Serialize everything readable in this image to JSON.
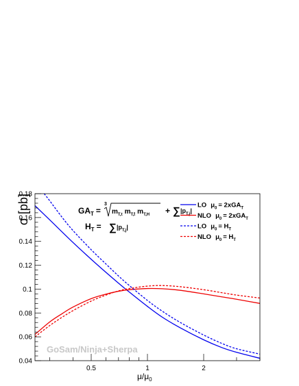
{
  "chart_data": {
    "type": "line",
    "xlabel": "μ/μ",
    "xlabel_sub": "0",
    "ylabel": "σ [pb]",
    "x_scale": "log",
    "xlim": [
      0.25,
      4.0
    ],
    "ylim": [
      0.04,
      0.18
    ],
    "y_ticks": [
      "0.04",
      "0.06",
      "0.08",
      "0.1",
      "0.12",
      "0.14",
      "0.16",
      "0.18"
    ],
    "x_ticks": [
      "0.5",
      "1",
      "2"
    ],
    "watermark": "GoSam/Ninja+Sherpa",
    "formulas": {
      "ga": {
        "lhs": "GA",
        "lhs_sub": "T",
        "eq": "=",
        "root_index": "3",
        "m1": "m",
        "m1_sub": "T,t",
        "m2": "m",
        "m2_sub": "T,t̄",
        "m3": "m",
        "m3_sub": "T,H",
        "plus": "+",
        "sum": "∑",
        "p": "|p",
        "p_sub": "T,j",
        "p_close": "|"
      },
      "ht": {
        "lhs": "H",
        "lhs_sub": "T",
        "eq": "=",
        "sum": "∑",
        "p": "|p",
        "p_sub": "T,j",
        "p_close": "|"
      }
    },
    "legend_position": "top-right",
    "series": [
      {
        "order": "LO",
        "mu": "μ",
        "mu_sub": "0",
        "scale": "= 2xGA",
        "scale_sub": "T",
        "color": "#0000ee",
        "dash": "solid",
        "x": [
          0.25,
          0.3,
          0.4,
          0.5,
          0.6,
          0.7,
          0.8,
          1.0,
          1.2,
          1.5,
          2.0,
          2.5,
          3.0,
          4.0
        ],
        "y": [
          0.17,
          0.158,
          0.139,
          0.125,
          0.114,
          0.105,
          0.0975,
          0.0855,
          0.0765,
          0.0675,
          0.0575,
          0.051,
          0.047,
          0.042
        ]
      },
      {
        "order": "NLO",
        "mu": "μ",
        "mu_sub": "0",
        "scale": "= 2xGA",
        "scale_sub": "T",
        "color": "#ee0000",
        "dash": "solid",
        "x": [
          0.25,
          0.3,
          0.35,
          0.4,
          0.5,
          0.6,
          0.7,
          0.8,
          1.0,
          1.2,
          1.5,
          2.0,
          2.5,
          3.0,
          4.0
        ],
        "y": [
          0.062,
          0.0725,
          0.0795,
          0.085,
          0.092,
          0.0958,
          0.0982,
          0.0995,
          0.1005,
          0.1003,
          0.099,
          0.096,
          0.0935,
          0.0915,
          0.088
        ]
      },
      {
        "order": "LO",
        "mu": "μ",
        "mu_sub": "0",
        "scale": "= H",
        "scale_sub": "T",
        "color": "#0000ee",
        "dash": "dotted",
        "x": [
          0.28,
          0.3,
          0.35,
          0.4,
          0.5,
          0.6,
          0.7,
          0.8,
          1.0,
          1.2,
          1.5,
          2.0,
          2.5,
          3.0,
          4.0
        ],
        "y": [
          0.18,
          0.174,
          0.16,
          0.149,
          0.133,
          0.121,
          0.111,
          0.103,
          0.0905,
          0.0815,
          0.072,
          0.0615,
          0.0545,
          0.05,
          0.0455
        ]
      },
      {
        "order": "NLO",
        "mu": "μ",
        "mu_sub": "0",
        "scale": "= H",
        "scale_sub": "T",
        "color": "#ee0000",
        "dash": "dotted",
        "x": [
          0.25,
          0.3,
          0.35,
          0.4,
          0.5,
          0.6,
          0.7,
          0.8,
          1.0,
          1.2,
          1.5,
          2.0,
          2.5,
          3.0,
          4.0
        ],
        "y": [
          0.06,
          0.0695,
          0.0765,
          0.082,
          0.09,
          0.095,
          0.0985,
          0.1005,
          0.1025,
          0.103,
          0.102,
          0.0995,
          0.097,
          0.095,
          0.0925
        ]
      }
    ]
  }
}
